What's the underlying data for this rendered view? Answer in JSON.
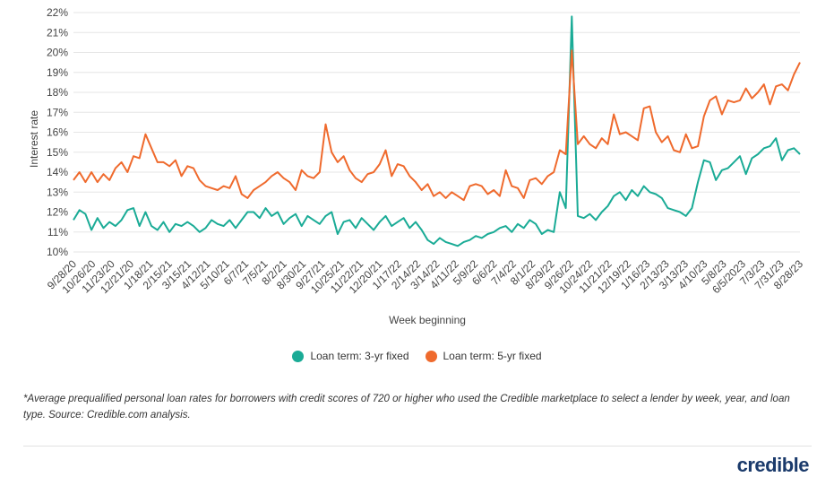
{
  "chart_data": {
    "type": "line",
    "ylabel": "Interest rate",
    "xlabel": "Week beginning",
    "ylim": [
      10,
      22
    ],
    "y_ticks": [
      "10%",
      "11%",
      "12%",
      "13%",
      "14%",
      "15%",
      "16%",
      "17%",
      "18%",
      "19%",
      "20%",
      "21%",
      "22%"
    ],
    "x_ticks": [
      "9/28/20",
      "10/26/20",
      "11/23/20",
      "12/21/20",
      "1/18/21",
      "2/15/21",
      "3/15/21",
      "4/12/21",
      "5/10/21",
      "6/7/21",
      "7/5/21",
      "8/2/21",
      "8/30/21",
      "9/27/21",
      "10/25/21",
      "11/22/21",
      "12/20/21",
      "1/17/22",
      "2/14/22",
      "3/14/22",
      "4/11/22",
      "5/9/22",
      "6/6/22",
      "7/4/22",
      "8/1/22",
      "8/29/22",
      "9/26/22",
      "10/24/22",
      "11/21/22",
      "12/19/22",
      "1/16/23",
      "2/13/23",
      "3/13/23",
      "4/10/23",
      "5/8/23",
      "6/5/2023",
      "7/3/23",
      "7/31/23",
      "8/28/23"
    ],
    "grid": true,
    "legend_position": "bottom",
    "series": [
      {
        "name": "Loan term: 3-yr fixed",
        "color": "#1aab96",
        "values": [
          11.6,
          12.1,
          11.9,
          11.1,
          11.7,
          11.2,
          11.5,
          11.3,
          11.6,
          12.1,
          12.2,
          11.3,
          12.0,
          11.3,
          11.1,
          11.5,
          11.0,
          11.4,
          11.3,
          11.5,
          11.3,
          11.0,
          11.2,
          11.6,
          11.4,
          11.3,
          11.6,
          11.2,
          11.6,
          12.0,
          12.0,
          11.7,
          12.2,
          11.8,
          12.0,
          11.4,
          11.7,
          11.9,
          11.3,
          11.8,
          11.6,
          11.4,
          11.8,
          12.0,
          10.9,
          11.5,
          11.6,
          11.2,
          11.7,
          11.4,
          11.1,
          11.5,
          11.8,
          11.3,
          11.5,
          11.7,
          11.2,
          11.5,
          11.1,
          10.6,
          10.4,
          10.7,
          10.5,
          10.4,
          10.3,
          10.5,
          10.6,
          10.8,
          10.7,
          10.9,
          11.0,
          11.2,
          11.3,
          11.0,
          11.4,
          11.2,
          11.6,
          11.4,
          10.9,
          11.1,
          11.0,
          13.0,
          12.2,
          21.8,
          11.8,
          11.7,
          11.9,
          11.6,
          12.0,
          12.3,
          12.8,
          13.0,
          12.6,
          13.1,
          12.8,
          13.3,
          13.0,
          12.9,
          12.7,
          12.2,
          12.1,
          12.0,
          11.8,
          12.2,
          13.5,
          14.6,
          14.5,
          13.6,
          14.1,
          14.2,
          14.5,
          14.8,
          13.9,
          14.7,
          14.9,
          15.2,
          15.3,
          15.7,
          14.6,
          15.1,
          15.2,
          14.9
        ]
      },
      {
        "name": "Loan term: 5-yr fixed",
        "color": "#ef6a2d",
        "values": [
          13.6,
          14.0,
          13.5,
          14.0,
          13.5,
          13.9,
          13.6,
          14.2,
          14.5,
          14.0,
          14.8,
          14.7,
          15.9,
          15.2,
          14.5,
          14.5,
          14.3,
          14.6,
          13.8,
          14.3,
          14.2,
          13.6,
          13.3,
          13.2,
          13.1,
          13.3,
          13.2,
          13.8,
          12.9,
          12.7,
          13.1,
          13.3,
          13.5,
          13.8,
          14.0,
          13.7,
          13.5,
          13.1,
          14.1,
          13.8,
          13.7,
          14.0,
          16.4,
          15.0,
          14.5,
          14.8,
          14.1,
          13.7,
          13.5,
          13.9,
          14.0,
          14.4,
          15.1,
          13.8,
          14.4,
          14.3,
          13.8,
          13.5,
          13.1,
          13.4,
          12.8,
          13.0,
          12.7,
          13.0,
          12.8,
          12.6,
          13.3,
          13.4,
          13.3,
          12.9,
          13.1,
          12.8,
          14.1,
          13.3,
          13.2,
          12.7,
          13.6,
          13.7,
          13.4,
          13.8,
          14.0,
          15.1,
          14.9,
          20.1,
          15.4,
          15.8,
          15.4,
          15.2,
          15.7,
          15.4,
          16.9,
          15.9,
          16.0,
          15.8,
          15.6,
          17.2,
          17.3,
          16.0,
          15.5,
          15.8,
          15.1,
          15.0,
          15.9,
          15.2,
          15.3,
          16.8,
          17.6,
          17.8,
          16.9,
          17.6,
          17.5,
          17.6,
          18.2,
          17.7,
          18.0,
          18.4,
          17.4,
          18.3,
          18.4,
          18.1,
          18.9,
          19.5
        ]
      }
    ]
  },
  "footnote": "*Average prequalified personal loan rates for borrowers with credit scores of 720 or higher who used the Credible marketplace to select a lender by week, year, and loan type. Source: Credible.com analysis.",
  "brand": "credible"
}
